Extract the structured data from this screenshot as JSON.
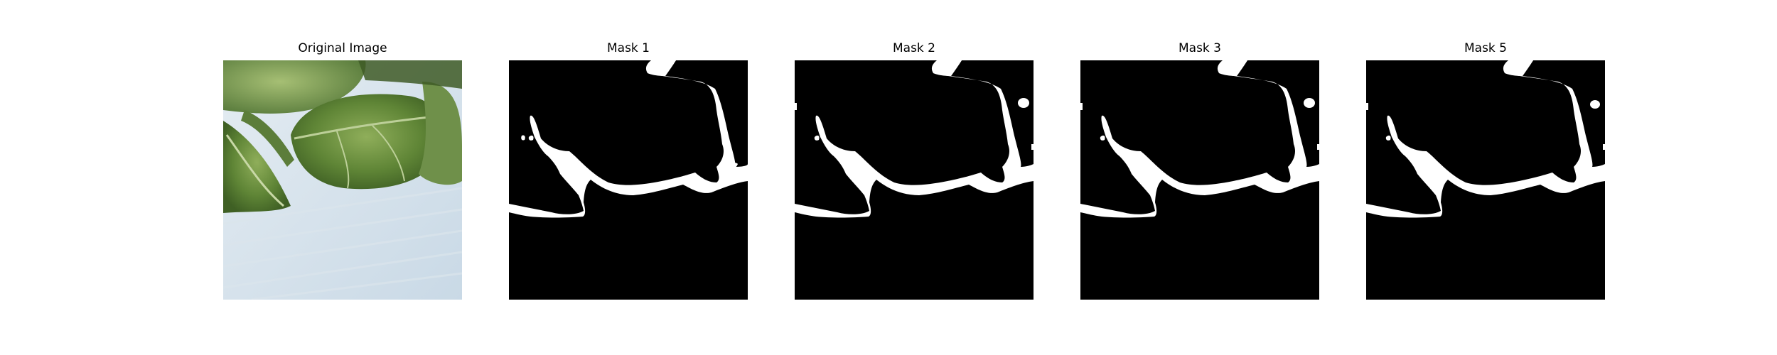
{
  "figure": {
    "panels": [
      {
        "title": "Original Image",
        "kind": "photo"
      },
      {
        "title": "Mask 1",
        "kind": "mask"
      },
      {
        "title": "Mask 2",
        "kind": "mask"
      },
      {
        "title": "Mask 3",
        "kind": "mask"
      },
      {
        "title": "Mask 5",
        "kind": "mask"
      }
    ],
    "colors": {
      "mask_foreground": "#ffffff",
      "mask_background": "#000000",
      "photo_background": "#d3e0ea",
      "leaf_dark": "#4a6e2e",
      "leaf_mid": "#6e9040",
      "leaf_light": "#9bb86a"
    }
  }
}
